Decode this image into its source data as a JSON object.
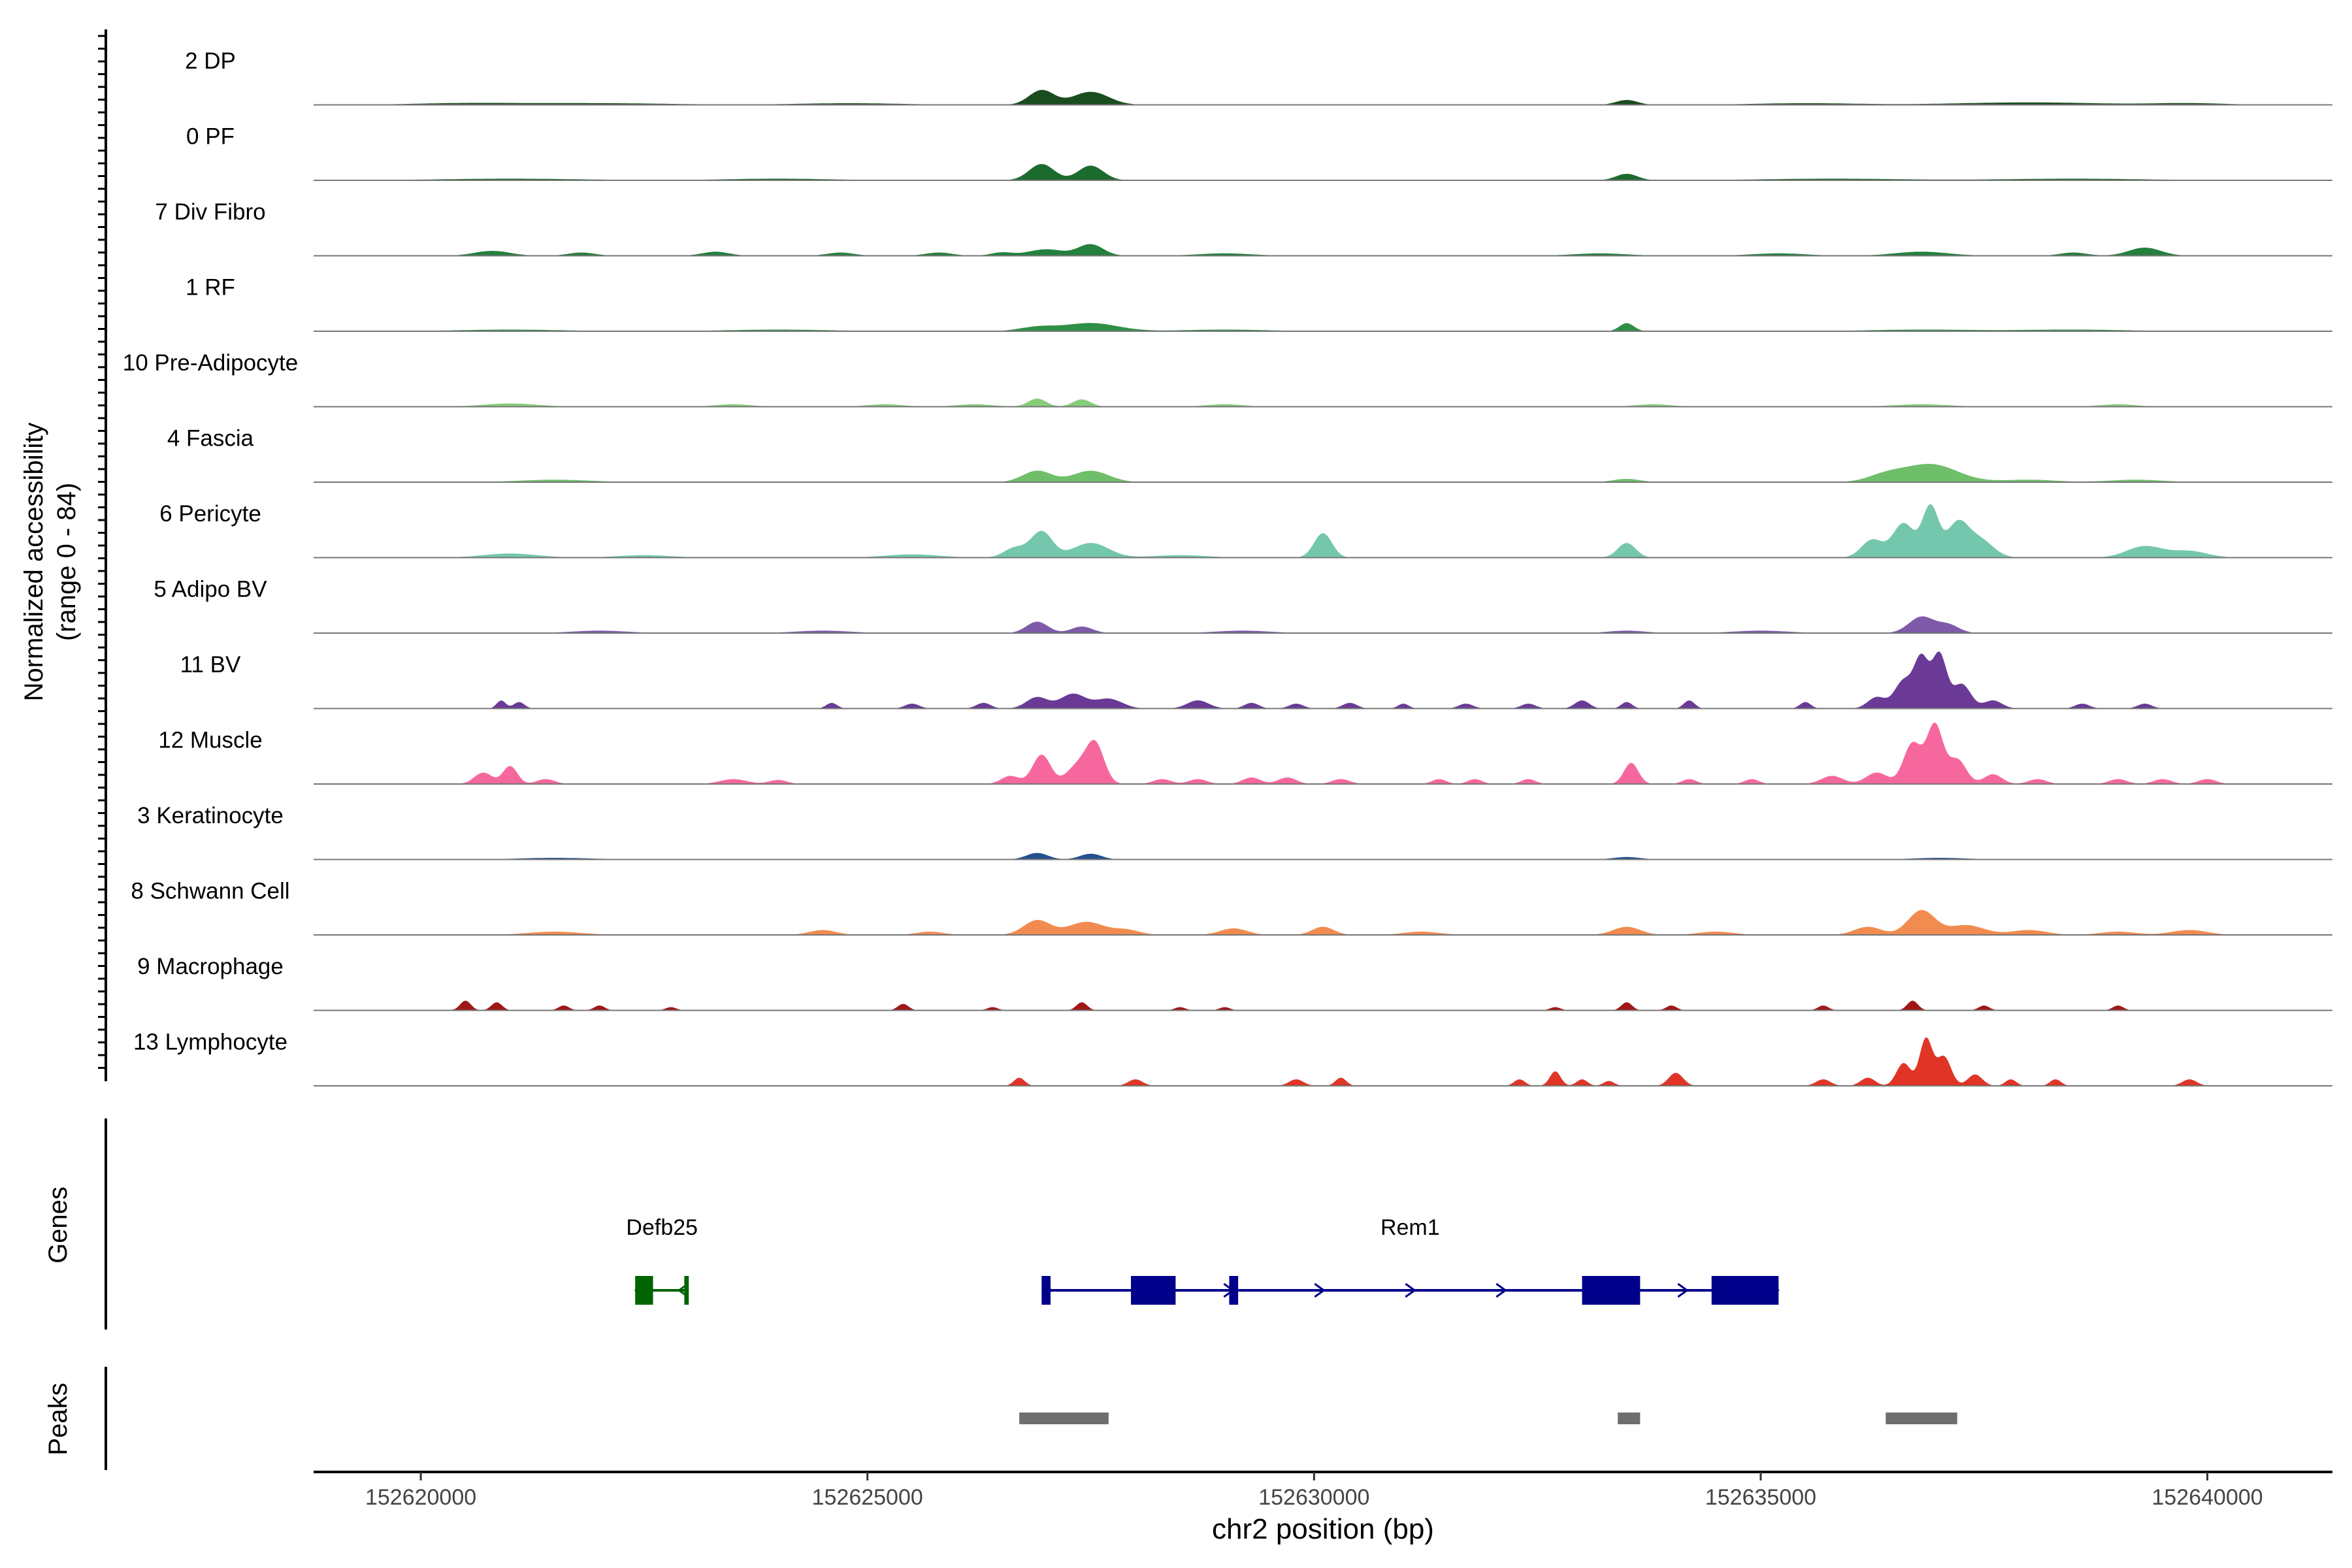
{
  "chart_data": {
    "type": "area",
    "ylabel_line1": "Normalized accessibility",
    "ylabel_line2": "(range 0 - 84)",
    "xlabel": "chr2 position (bp)",
    "ylim": [
      0,
      84
    ],
    "xlim": [
      152618800,
      152641400
    ],
    "x_ticks": [
      152620000,
      152625000,
      152630000,
      152635000,
      152640000
    ],
    "x_tick_labels": [
      "152620000",
      "152625000",
      "152630000",
      "152635000",
      "152640000"
    ],
    "series": [
      {
        "name": "2 DP",
        "color": "#1a4d1e",
        "peaks": [
          [
            152626950,
            18,
            140
          ],
          [
            152627500,
            16,
            200
          ],
          [
            152620500,
            2,
            600
          ],
          [
            152622000,
            2,
            800
          ],
          [
            152624800,
            2,
            600
          ],
          [
            152633500,
            6,
            120
          ],
          [
            152635500,
            2,
            600
          ],
          [
            152638000,
            3,
            800
          ],
          [
            152639800,
            2,
            400
          ]
        ]
      },
      {
        "name": "0 PF",
        "color": "#1d6a2f",
        "peaks": [
          [
            152626950,
            20,
            140
          ],
          [
            152627500,
            18,
            140
          ],
          [
            152621000,
            2,
            800
          ],
          [
            152624000,
            2,
            600
          ],
          [
            152633500,
            8,
            120
          ],
          [
            152635800,
            2,
            800
          ],
          [
            152638500,
            2,
            800
          ]
        ]
      },
      {
        "name": "7 Div Fibro",
        "color": "#23803d",
        "peaks": [
          [
            152627500,
            14,
            140
          ],
          [
            152627000,
            8,
            200
          ],
          [
            152620800,
            6,
            200
          ],
          [
            152621800,
            4,
            150
          ],
          [
            152623300,
            5,
            150
          ],
          [
            152624700,
            4,
            150
          ],
          [
            152625800,
            4,
            150
          ],
          [
            152626500,
            4,
            120
          ],
          [
            152629000,
            3,
            300
          ],
          [
            152633200,
            3,
            300
          ],
          [
            152635200,
            3,
            300
          ],
          [
            152636800,
            5,
            300
          ],
          [
            152638500,
            4,
            150
          ],
          [
            152639300,
            10,
            180
          ]
        ]
      },
      {
        "name": "1 RF",
        "color": "#2f8f45",
        "peaks": [
          [
            152627500,
            10,
            300
          ],
          [
            152626900,
            5,
            200
          ],
          [
            152633500,
            10,
            80
          ],
          [
            152621000,
            2,
            600
          ],
          [
            152624000,
            2,
            600
          ],
          [
            152629000,
            2,
            500
          ],
          [
            152636800,
            2,
            600
          ],
          [
            152638500,
            2,
            600
          ]
        ]
      },
      {
        "name": "10 Pre-Adipocyte",
        "color": "#86cc79",
        "peaks": [
          [
            152626900,
            10,
            100
          ],
          [
            152627400,
            9,
            100
          ],
          [
            152621000,
            4,
            300
          ],
          [
            152623500,
            3,
            200
          ],
          [
            152625200,
            3,
            200
          ],
          [
            152626200,
            3,
            200
          ],
          [
            152629000,
            3,
            200
          ],
          [
            152633800,
            3,
            200
          ],
          [
            152636800,
            3,
            300
          ],
          [
            152639000,
            3,
            200
          ]
        ]
      },
      {
        "name": "4 Fascia",
        "color": "#6fbe6a",
        "peaks": [
          [
            152626900,
            14,
            160
          ],
          [
            152627500,
            14,
            200
          ],
          [
            152636900,
            22,
            300
          ],
          [
            152636400,
            8,
            200
          ],
          [
            152621500,
            3,
            400
          ],
          [
            152633500,
            4,
            150
          ],
          [
            152638000,
            3,
            300
          ],
          [
            152639200,
            3,
            300
          ]
        ]
      },
      {
        "name": "6 Pericyte",
        "color": "#74c7ad",
        "peaks": [
          [
            152626950,
            32,
            120
          ],
          [
            152626650,
            12,
            120
          ],
          [
            152627500,
            18,
            200
          ],
          [
            152630100,
            30,
            100
          ],
          [
            152633500,
            18,
            100
          ],
          [
            152636250,
            22,
            120
          ],
          [
            152636600,
            42,
            120
          ],
          [
            152636900,
            62,
            90
          ],
          [
            152637200,
            40,
            120
          ],
          [
            152637450,
            22,
            150
          ],
          [
            152639300,
            14,
            200
          ],
          [
            152639800,
            8,
            200
          ],
          [
            152621000,
            5,
            300
          ],
          [
            152622500,
            3,
            300
          ],
          [
            152625500,
            4,
            300
          ],
          [
            152628500,
            3,
            300
          ]
        ]
      },
      {
        "name": "5 Adipo BV",
        "color": "#7e5aa8",
        "peaks": [
          [
            152626900,
            14,
            120
          ],
          [
            152627400,
            8,
            120
          ],
          [
            152636800,
            20,
            140
          ],
          [
            152637100,
            10,
            120
          ],
          [
            152622000,
            3,
            300
          ],
          [
            152624500,
            3,
            300
          ],
          [
            152629200,
            3,
            300
          ],
          [
            152633500,
            3,
            200
          ],
          [
            152635000,
            3,
            300
          ]
        ]
      },
      {
        "name": "11 BV",
        "color": "#6a3a96",
        "peaks": [
          [
            152620900,
            10,
            50
          ],
          [
            152621100,
            8,
            60
          ],
          [
            152624600,
            7,
            60
          ],
          [
            152625500,
            6,
            80
          ],
          [
            152626300,
            7,
            80
          ],
          [
            152626900,
            14,
            120
          ],
          [
            152627300,
            18,
            140
          ],
          [
            152627700,
            12,
            150
          ],
          [
            152628700,
            10,
            120
          ],
          [
            152629300,
            7,
            80
          ],
          [
            152629800,
            6,
            80
          ],
          [
            152630400,
            7,
            80
          ],
          [
            152631000,
            6,
            60
          ],
          [
            152631700,
            6,
            80
          ],
          [
            152632400,
            6,
            80
          ],
          [
            152633000,
            10,
            80
          ],
          [
            152633500,
            8,
            60
          ],
          [
            152634200,
            10,
            60
          ],
          [
            152635500,
            8,
            60
          ],
          [
            152636300,
            14,
            100
          ],
          [
            152636600,
            34,
            100
          ],
          [
            152636800,
            60,
            80
          ],
          [
            152637000,
            66,
            80
          ],
          [
            152637250,
            30,
            100
          ],
          [
            152637600,
            10,
            100
          ],
          [
            152638600,
            6,
            80
          ],
          [
            152639300,
            6,
            80
          ]
        ]
      },
      {
        "name": "12 Muscle",
        "color": "#f6689d",
        "peaks": [
          [
            152620700,
            14,
            100
          ],
          [
            152621000,
            22,
            80
          ],
          [
            152621400,
            6,
            100
          ],
          [
            152623500,
            6,
            150
          ],
          [
            152624000,
            5,
            100
          ],
          [
            152626600,
            10,
            100
          ],
          [
            152626950,
            36,
            100
          ],
          [
            152627350,
            22,
            120
          ],
          [
            152627550,
            48,
            100
          ],
          [
            152628300,
            6,
            100
          ],
          [
            152628700,
            6,
            100
          ],
          [
            152629300,
            8,
            100
          ],
          [
            152629700,
            8,
            100
          ],
          [
            152630300,
            6,
            100
          ],
          [
            152631400,
            6,
            80
          ],
          [
            152631800,
            6,
            80
          ],
          [
            152632400,
            6,
            80
          ],
          [
            152633550,
            26,
            80
          ],
          [
            152634200,
            6,
            80
          ],
          [
            152634900,
            6,
            80
          ],
          [
            152635800,
            10,
            120
          ],
          [
            152636300,
            14,
            120
          ],
          [
            152636700,
            50,
            100
          ],
          [
            152636950,
            72,
            90
          ],
          [
            152637200,
            30,
            100
          ],
          [
            152637600,
            12,
            100
          ],
          [
            152638100,
            6,
            100
          ],
          [
            152639000,
            6,
            100
          ],
          [
            152639500,
            6,
            100
          ],
          [
            152640000,
            6,
            100
          ]
        ]
      },
      {
        "name": "3 Keratinocyte",
        "color": "#24508f",
        "peaks": [
          [
            152626900,
            8,
            120
          ],
          [
            152627500,
            7,
            120
          ],
          [
            152621500,
            2,
            400
          ],
          [
            152633500,
            3,
            150
          ],
          [
            152637000,
            2,
            300
          ]
        ]
      },
      {
        "name": "8 Schwann Cell",
        "color": "#f28b50",
        "peaks": [
          [
            152626900,
            18,
            150
          ],
          [
            152627450,
            16,
            200
          ],
          [
            152627900,
            6,
            150
          ],
          [
            152621500,
            4,
            300
          ],
          [
            152624500,
            6,
            150
          ],
          [
            152625700,
            4,
            150
          ],
          [
            152629100,
            8,
            150
          ],
          [
            152630100,
            10,
            120
          ],
          [
            152631200,
            4,
            200
          ],
          [
            152633500,
            10,
            150
          ],
          [
            152634500,
            4,
            200
          ],
          [
            152636200,
            10,
            150
          ],
          [
            152636800,
            30,
            150
          ],
          [
            152637300,
            12,
            200
          ],
          [
            152638000,
            6,
            200
          ],
          [
            152639000,
            4,
            200
          ],
          [
            152639800,
            6,
            200
          ]
        ]
      },
      {
        "name": "9 Macrophage",
        "color": "#a01717",
        "peaks": [
          [
            152620500,
            12,
            60
          ],
          [
            152620850,
            10,
            60
          ],
          [
            152621600,
            6,
            60
          ],
          [
            152622000,
            6,
            60
          ],
          [
            152622800,
            4,
            60
          ],
          [
            152625400,
            8,
            60
          ],
          [
            152626400,
            4,
            60
          ],
          [
            152627400,
            10,
            60
          ],
          [
            152628500,
            4,
            60
          ],
          [
            152629000,
            4,
            60
          ],
          [
            152632700,
            4,
            60
          ],
          [
            152633500,
            10,
            60
          ],
          [
            152634000,
            6,
            60
          ],
          [
            152635700,
            6,
            60
          ],
          [
            152636700,
            12,
            60
          ],
          [
            152637500,
            6,
            60
          ],
          [
            152639000,
            6,
            60
          ]
        ]
      },
      {
        "name": "13 Lymphocyte",
        "color": "#e03526",
        "peaks": [
          [
            152626700,
            10,
            60
          ],
          [
            152628000,
            8,
            80
          ],
          [
            152629800,
            8,
            80
          ],
          [
            152630300,
            10,
            60
          ],
          [
            152632300,
            8,
            60
          ],
          [
            152632700,
            18,
            60
          ],
          [
            152633000,
            8,
            60
          ],
          [
            152633300,
            6,
            60
          ],
          [
            152634050,
            16,
            80
          ],
          [
            152635700,
            8,
            80
          ],
          [
            152636200,
            10,
            80
          ],
          [
            152636600,
            28,
            80
          ],
          [
            152636850,
            58,
            70
          ],
          [
            152637050,
            36,
            80
          ],
          [
            152637400,
            14,
            80
          ],
          [
            152637800,
            8,
            60
          ],
          [
            152638300,
            8,
            60
          ],
          [
            152639800,
            8,
            80
          ]
        ]
      }
    ],
    "genes": [
      {
        "name": "Defb25",
        "color": "#006400",
        "start": 152622400,
        "end": 152623000,
        "strand": "-",
        "exons": [
          [
            152622400,
            152622600
          ],
          [
            152622950,
            152623000
          ]
        ]
      },
      {
        "name": "Rem1",
        "color": "#00008b",
        "start": 152626950,
        "end": 152635200,
        "strand": "+",
        "exons": [
          [
            152626950,
            152627050
          ],
          [
            152627950,
            152628450
          ],
          [
            152629050,
            152629150
          ],
          [
            152633000,
            152633650
          ],
          [
            152634450,
            152635200
          ]
        ]
      }
    ],
    "peaks_track": [
      [
        152626700,
        152627700
      ],
      [
        152633400,
        152633650
      ],
      [
        152636400,
        152637200
      ]
    ],
    "track_labels": {
      "genes": "Genes",
      "peaks": "Peaks"
    }
  }
}
